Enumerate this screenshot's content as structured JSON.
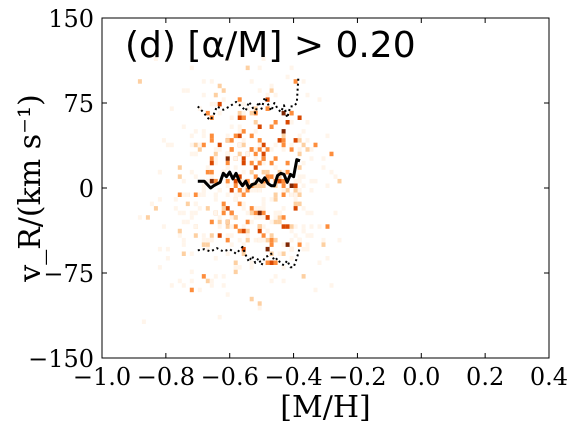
{
  "chart_data": {
    "type": "heatmap",
    "title": "(d) [α/M] > 0.20",
    "xlabel": "[M/H]",
    "ylabel": "v_R/(km s⁻¹)",
    "xlim": [
      -1.0,
      0.4
    ],
    "ylim": [
      -150,
      150
    ],
    "x_ticks": [
      "−1.0",
      "−0.8",
      "−0.6",
      "−0.4",
      "−0.2",
      "0.0",
      "0.2",
      "0.4"
    ],
    "y_ticks": [
      "−150",
      "−75",
      "0",
      "75",
      "150"
    ],
    "colormap": [
      "#fff5eb",
      "#fdd0a2",
      "#fd8d3c",
      "#d94801",
      "#7f2704"
    ],
    "series": [
      {
        "style": "solid",
        "color": "#000000",
        "x": [
          -0.7,
          -0.68,
          -0.66,
          -0.65,
          -0.63,
          -0.62,
          -0.61,
          -0.6,
          -0.59,
          -0.58,
          -0.57,
          -0.56,
          -0.55,
          -0.54,
          -0.53,
          -0.52,
          -0.51,
          -0.5,
          -0.49,
          -0.48,
          -0.47,
          -0.46,
          -0.45,
          -0.44,
          -0.43,
          -0.42,
          -0.41,
          -0.4,
          -0.39,
          -0.38
        ],
        "y": [
          6,
          6,
          0,
          2,
          5,
          13,
          10,
          14,
          8,
          13,
          6,
          2,
          6,
          0,
          3,
          4,
          8,
          5,
          9,
          4,
          2,
          2,
          11,
          13,
          12,
          5,
          12,
          10,
          25,
          24
        ]
      },
      {
        "style": "dotted",
        "color": "#000000",
        "x": [
          -0.7,
          -0.68,
          -0.67,
          -0.66,
          -0.65,
          -0.64,
          -0.62,
          -0.6,
          -0.58,
          -0.56,
          -0.55,
          -0.54,
          -0.53,
          -0.52,
          -0.51,
          -0.5,
          -0.49,
          -0.48,
          -0.47,
          -0.46,
          -0.45,
          -0.44,
          -0.43,
          -0.42,
          -0.41,
          -0.4,
          -0.39,
          -0.385
        ],
        "y": [
          72,
          66,
          62,
          60,
          65,
          72,
          69,
          72,
          76,
          71,
          68,
          76,
          72,
          66,
          76,
          70,
          80,
          74,
          68,
          75,
          70,
          67,
          73,
          62,
          72,
          72,
          75,
          98
        ]
      },
      {
        "style": "dotted",
        "color": "#000000",
        "x": [
          -0.7,
          -0.68,
          -0.66,
          -0.64,
          -0.62,
          -0.6,
          -0.58,
          -0.56,
          -0.55,
          -0.54,
          -0.53,
          -0.52,
          -0.51,
          -0.5,
          -0.49,
          -0.48,
          -0.47,
          -0.46,
          -0.45,
          -0.44,
          -0.43,
          -0.42,
          -0.41,
          -0.4,
          -0.39,
          -0.38
        ],
        "y": [
          -55,
          -54,
          -56,
          -53,
          -56,
          -54,
          -58,
          -52,
          -59,
          -65,
          -60,
          -66,
          -62,
          -68,
          -61,
          -60,
          -58,
          -64,
          -62,
          -67,
          -68,
          -64,
          -70,
          -70,
          -62,
          -52
        ]
      }
    ]
  }
}
